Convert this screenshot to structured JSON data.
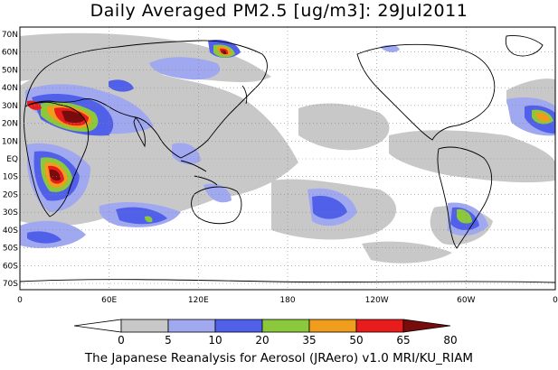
{
  "title": "Daily Averaged PM2.5 [ug/m3]: 29Jul2011",
  "footer": "The Japanese Reanalysis for Aerosol (JRAero) v1.0 MRI/KU_RIAM",
  "lat_labels": [
    "70N",
    "60N",
    "50N",
    "40N",
    "30N",
    "20N",
    "10N",
    "EQ",
    "10S",
    "20S",
    "30S",
    "40S",
    "50S",
    "60S",
    "70S"
  ],
  "lon_labels": [
    "0",
    "60E",
    "120E",
    "180",
    "120W",
    "60W",
    "0"
  ],
  "colorbar": {
    "labels": [
      "0",
      "5",
      "10",
      "20",
      "35",
      "50",
      "65",
      "80"
    ],
    "colors": [
      "#ffffff",
      "#c8c8c8",
      "#a0a8f0",
      "#5060e8",
      "#8cc83c",
      "#f09c1c",
      "#e81c1c",
      "#780c0c"
    ]
  }
}
